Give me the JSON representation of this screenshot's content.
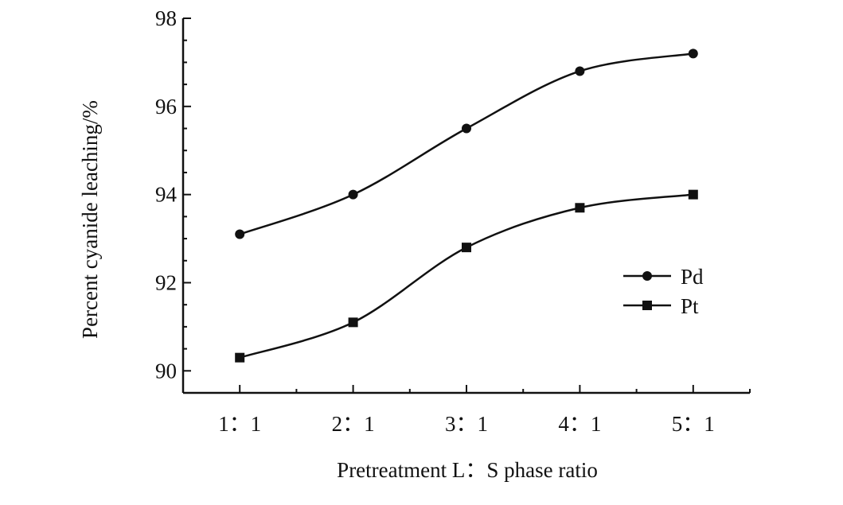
{
  "chart_data": {
    "type": "line",
    "categories": [
      "1：1",
      "2：1",
      "3：1",
      "4：1",
      "5：1"
    ],
    "x": [
      1,
      2,
      3,
      4,
      5
    ],
    "xlim": [
      0.5,
      5.5
    ],
    "ylim": [
      89.5,
      98
    ],
    "yticks": [
      90,
      92,
      94,
      96,
      98
    ],
    "xlabel": "Pretreatment L：S phase ratio",
    "ylabel": "Percent cyanide leaching/%",
    "grid": false,
    "legend_position": "right",
    "series": [
      {
        "name": "Pd",
        "marker": "circle",
        "values": [
          93.1,
          94.0,
          95.5,
          96.8,
          97.2
        ]
      },
      {
        "name": "Pt",
        "marker": "square",
        "values": [
          90.3,
          91.1,
          92.8,
          93.7,
          94.0
        ]
      }
    ],
    "color": "#111111"
  }
}
